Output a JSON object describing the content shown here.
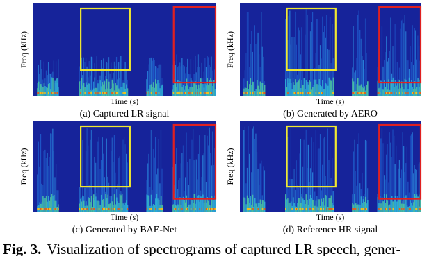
{
  "panels": [
    {
      "ylabel": "Freq (kHz)",
      "xlabel": "Time (s)",
      "caption": "(a) Captured LR signal"
    },
    {
      "ylabel": "Freq (kHz)",
      "xlabel": "Time (s)",
      "caption": "(b) Generated by AERO"
    },
    {
      "ylabel": "Freq (kHz)",
      "xlabel": "Time (s)",
      "caption": "(c) Generated by BAE-Net"
    },
    {
      "ylabel": "Freq (kHz)",
      "xlabel": "Time (s)",
      "caption": "(d) Reference HR signal"
    }
  ],
  "figure_caption": {
    "label": "Fig. 3.",
    "text": "Visualization of spectrograms of captured LR speech, gener-"
  }
}
